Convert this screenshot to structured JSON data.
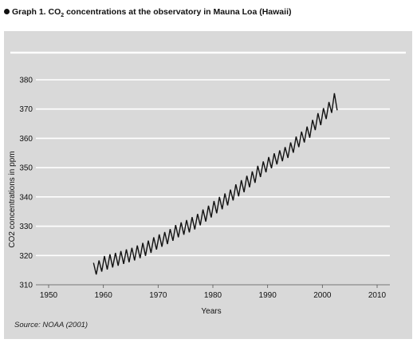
{
  "title": {
    "bullet_icon": "filled-circle-icon",
    "prefix": "Graph 1. CO",
    "subscript": "2",
    "suffix": " concentrations at the observatory in Mauna Loa (Hawaii)"
  },
  "source": "Source: NOAA (2001)",
  "colors": {
    "panel_background": "#d9d9d9",
    "gridline": "#ffffff",
    "series_line": "#111111"
  },
  "chart_data": {
    "type": "line",
    "title": "Graph 1. CO2 concentrations at the observatory in Mauna Loa (Hawaii)",
    "xlabel": "Years",
    "ylabel": "CO2 concentrations in ppm",
    "xlim": [
      1950,
      2010
    ],
    "ylim": [
      310,
      380
    ],
    "xticks": [
      1950,
      1960,
      1970,
      1980,
      1990,
      2000,
      2010
    ],
    "yticks": [
      310,
      320,
      330,
      340,
      350,
      360,
      370,
      380
    ],
    "grid": "horizontal",
    "legend": "none",
    "series": [
      {
        "x": [
          1958.2,
          1958.7,
          1959.2,
          1959.7,
          1960.2,
          1960.7,
          1961.2,
          1961.7,
          1962.2,
          1962.7,
          1963.2,
          1963.7,
          1964.2,
          1964.7,
          1965.2,
          1965.7,
          1966.2,
          1966.7,
          1967.2,
          1967.7,
          1968.2,
          1968.7,
          1969.2,
          1969.7,
          1970.2,
          1970.7,
          1971.2,
          1971.7,
          1972.2,
          1972.7,
          1973.2,
          1973.7,
          1974.2,
          1974.7,
          1975.2,
          1975.7,
          1976.2,
          1976.7,
          1977.2,
          1977.7,
          1978.2,
          1978.7,
          1979.2,
          1979.7,
          1980.2,
          1980.7,
          1981.2,
          1981.7,
          1982.2,
          1982.7,
          1983.2,
          1983.7,
          1984.2,
          1984.7,
          1985.2,
          1985.7,
          1986.2,
          1986.7,
          1987.2,
          1987.7,
          1988.2,
          1988.7,
          1989.2,
          1989.7,
          1990.2,
          1990.7,
          1991.2,
          1991.7,
          1992.2,
          1992.7,
          1993.2,
          1993.7,
          1994.2,
          1994.7,
          1995.2,
          1995.7,
          1996.2,
          1996.7,
          1997.2,
          1997.7,
          1998.2,
          1998.7,
          1999.2,
          1999.7,
          2000.2,
          2000.7,
          2001.2,
          2001.7,
          2002.2,
          2002.7
        ],
        "y": [
          317.5,
          313.5,
          318.3,
          314.5,
          319.8,
          315.2,
          320.4,
          315.9,
          320.9,
          316.5,
          321.5,
          317.1,
          322.1,
          317.7,
          322.6,
          318.3,
          323.4,
          319.1,
          324.3,
          319.9,
          325.1,
          320.9,
          326.2,
          322.0,
          327.2,
          323.0,
          328.0,
          323.9,
          329.0,
          325.0,
          330.4,
          326.2,
          331.3,
          327.1,
          332.1,
          327.9,
          333.1,
          328.9,
          334.2,
          330.3,
          335.7,
          331.6,
          337.0,
          333.0,
          338.6,
          334.4,
          340.0,
          335.8,
          341.2,
          337.1,
          342.5,
          338.8,
          344.3,
          340.2,
          345.7,
          341.6,
          347.2,
          343.3,
          348.7,
          344.8,
          350.6,
          346.8,
          352.1,
          348.4,
          353.6,
          349.8,
          354.9,
          351.1,
          355.9,
          352.2,
          357.0,
          353.3,
          358.6,
          355.1,
          360.6,
          357.0,
          362.3,
          358.6,
          364.0,
          360.2,
          366.3,
          362.8,
          368.6,
          364.5,
          370.3,
          366.6,
          372.4,
          368.7,
          375.4,
          369.6
        ]
      }
    ]
  }
}
